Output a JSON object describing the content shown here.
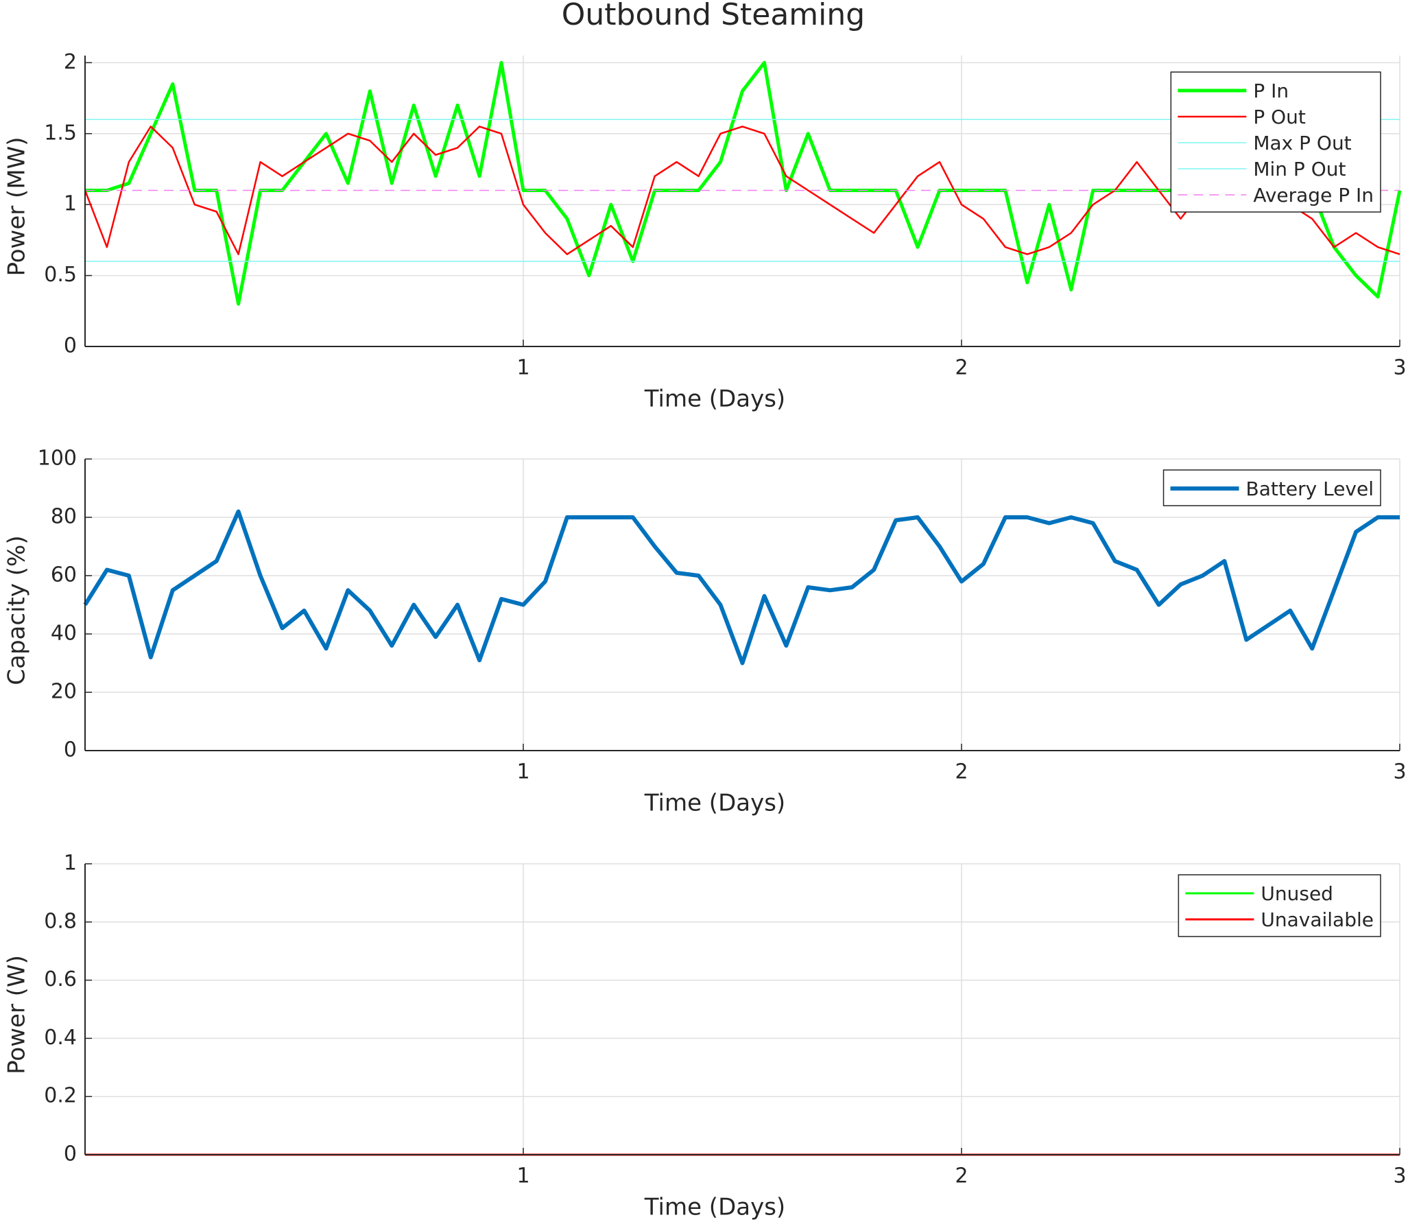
{
  "chart_data": [
    {
      "type": "line",
      "title": "Outbound Steaming",
      "ylabel": "Power (MW)",
      "xlabel": "Time (Days)",
      "xlim": [
        0,
        3
      ],
      "xticks": [
        1,
        2,
        3
      ],
      "ylim": [
        0,
        2.05
      ],
      "yticks": [
        0,
        0.5,
        1,
        1.5,
        2
      ],
      "grid": true,
      "legend": "upper right",
      "series": [
        {
          "name": "P In",
          "color": "#00ff00",
          "line_width": 5,
          "x": [
            0,
            0.05,
            0.1,
            0.15,
            0.2,
            0.25,
            0.3,
            0.35,
            0.4,
            0.45,
            0.5,
            0.55,
            0.6,
            0.65,
            0.7,
            0.75,
            0.8,
            0.85,
            0.9,
            0.95,
            1,
            1.05,
            1.1,
            1.15,
            1.2,
            1.25,
            1.3,
            1.35,
            1.4,
            1.45,
            1.5,
            1.55,
            1.6,
            1.65,
            1.7,
            1.75,
            1.8,
            1.85,
            1.9,
            1.95,
            2,
            2.05,
            2.1,
            2.15,
            2.2,
            2.25,
            2.3,
            2.35,
            2.4,
            2.45,
            2.5,
            2.55,
            2.6,
            2.65,
            2.7,
            2.75,
            2.8,
            2.85,
            2.9,
            2.95,
            3
          ],
          "values": [
            1.1,
            1.1,
            1.15,
            1.5,
            1.85,
            1.1,
            1.1,
            0.3,
            1.1,
            1.1,
            1.3,
            1.5,
            1.15,
            1.8,
            1.15,
            1.7,
            1.2,
            1.7,
            1.2,
            2.0,
            1.1,
            1.1,
            0.9,
            0.5,
            1.0,
            0.6,
            1.1,
            1.1,
            1.1,
            1.3,
            1.8,
            2.0,
            1.1,
            1.5,
            1.1,
            1.1,
            1.1,
            1.1,
            0.7,
            1.1,
            1.1,
            1.1,
            1.1,
            0.45,
            1.0,
            0.4,
            1.1,
            1.1,
            1.1,
            1.1,
            1.1,
            1.1,
            1.1,
            1.1,
            1.1,
            1.1,
            1.1,
            0.7,
            0.5,
            0.35,
            1.1
          ]
        },
        {
          "name": "P Out",
          "color": "#ff0000",
          "line_width": 2.5,
          "x": [
            0,
            0.05,
            0.1,
            0.15,
            0.2,
            0.25,
            0.3,
            0.35,
            0.4,
            0.45,
            0.5,
            0.55,
            0.6,
            0.65,
            0.7,
            0.75,
            0.8,
            0.85,
            0.9,
            0.95,
            1,
            1.05,
            1.1,
            1.15,
            1.2,
            1.25,
            1.3,
            1.35,
            1.4,
            1.45,
            1.5,
            1.55,
            1.6,
            1.65,
            1.7,
            1.75,
            1.8,
            1.85,
            1.9,
            1.95,
            2,
            2.05,
            2.1,
            2.15,
            2.2,
            2.25,
            2.3,
            2.35,
            2.4,
            2.45,
            2.5,
            2.55,
            2.6,
            2.65,
            2.7,
            2.75,
            2.8,
            2.85,
            2.9,
            2.95,
            3
          ],
          "values": [
            1.1,
            0.7,
            1.3,
            1.55,
            1.4,
            1.0,
            0.95,
            0.65,
            1.3,
            1.2,
            1.3,
            1.4,
            1.5,
            1.45,
            1.3,
            1.5,
            1.35,
            1.4,
            1.55,
            1.5,
            1.0,
            0.8,
            0.65,
            0.75,
            0.85,
            0.7,
            1.2,
            1.3,
            1.2,
            1.5,
            1.55,
            1.5,
            1.2,
            1.1,
            1.0,
            0.9,
            0.8,
            1.0,
            1.2,
            1.3,
            1.0,
            0.9,
            0.7,
            0.65,
            0.7,
            0.8,
            1.0,
            1.1,
            1.3,
            1.1,
            0.9,
            1.1,
            1.05,
            1.0,
            1.1,
            1.0,
            0.9,
            0.7,
            0.8,
            0.7,
            0.65
          ]
        },
        {
          "name": "Max P Out",
          "color": "#7ff5f0",
          "line_width": 1.5,
          "x": [
            0,
            3
          ],
          "values": [
            1.6,
            1.6
          ]
        },
        {
          "name": "Min P Out",
          "color": "#7ff5f0",
          "line_width": 1.5,
          "x": [
            0,
            3
          ],
          "values": [
            0.6,
            0.6
          ]
        },
        {
          "name": "Average P In",
          "color": "#f07ff0",
          "line_width": 1.5,
          "dash": true,
          "x": [
            0,
            3
          ],
          "values": [
            1.1,
            1.1
          ]
        }
      ]
    },
    {
      "type": "line",
      "ylabel": "Capacity (%)",
      "xlabel": "Time (Days)",
      "xlim": [
        0,
        3
      ],
      "xticks": [
        1,
        2,
        3
      ],
      "ylim": [
        0,
        100
      ],
      "yticks": [
        0,
        20,
        40,
        60,
        80,
        100
      ],
      "grid": true,
      "legend": "upper right",
      "series": [
        {
          "name": "Battery Level",
          "color": "#0072bd",
          "line_width": 6,
          "x": [
            0,
            0.05,
            0.1,
            0.15,
            0.2,
            0.25,
            0.3,
            0.35,
            0.4,
            0.45,
            0.5,
            0.55,
            0.6,
            0.65,
            0.7,
            0.75,
            0.8,
            0.85,
            0.9,
            0.95,
            1,
            1.05,
            1.1,
            1.15,
            1.2,
            1.25,
            1.3,
            1.35,
            1.4,
            1.45,
            1.5,
            1.55,
            1.6,
            1.65,
            1.7,
            1.75,
            1.8,
            1.85,
            1.9,
            1.95,
            2,
            2.05,
            2.1,
            2.15,
            2.2,
            2.25,
            2.3,
            2.35,
            2.4,
            2.45,
            2.5,
            2.55,
            2.6,
            2.65,
            2.7,
            2.75,
            2.8,
            2.85,
            2.9,
            2.95,
            3
          ],
          "values": [
            50,
            62,
            60,
            32,
            55,
            60,
            65,
            82,
            60,
            42,
            48,
            35,
            55,
            48,
            36,
            50,
            39,
            50,
            31,
            52,
            50,
            58,
            80,
            80,
            80,
            80,
            70,
            61,
            60,
            50,
            30,
            53,
            36,
            56,
            55,
            56,
            62,
            79,
            80,
            70,
            58,
            64,
            80,
            80,
            78,
            80,
            78,
            65,
            62,
            50,
            57,
            60,
            65,
            38,
            43,
            48,
            35,
            55,
            75,
            80,
            80
          ]
        }
      ]
    },
    {
      "type": "line",
      "ylabel": "Power (W)",
      "xlabel": "Time (Days)",
      "xlim": [
        0,
        3
      ],
      "xticks": [
        1,
        2,
        3
      ],
      "ylim": [
        0,
        1
      ],
      "yticks": [
        0,
        0.2,
        0.4,
        0.6,
        0.8,
        1
      ],
      "grid": true,
      "legend": "upper right",
      "series": [
        {
          "name": "Unused",
          "color": "#00ff00",
          "line_width": 3,
          "x": [
            0,
            3
          ],
          "values": [
            0,
            0
          ]
        },
        {
          "name": "Unavailable",
          "color": "#ff0000",
          "line_width": 3,
          "x": [
            0,
            3
          ],
          "values": [
            0,
            0
          ]
        }
      ]
    }
  ]
}
